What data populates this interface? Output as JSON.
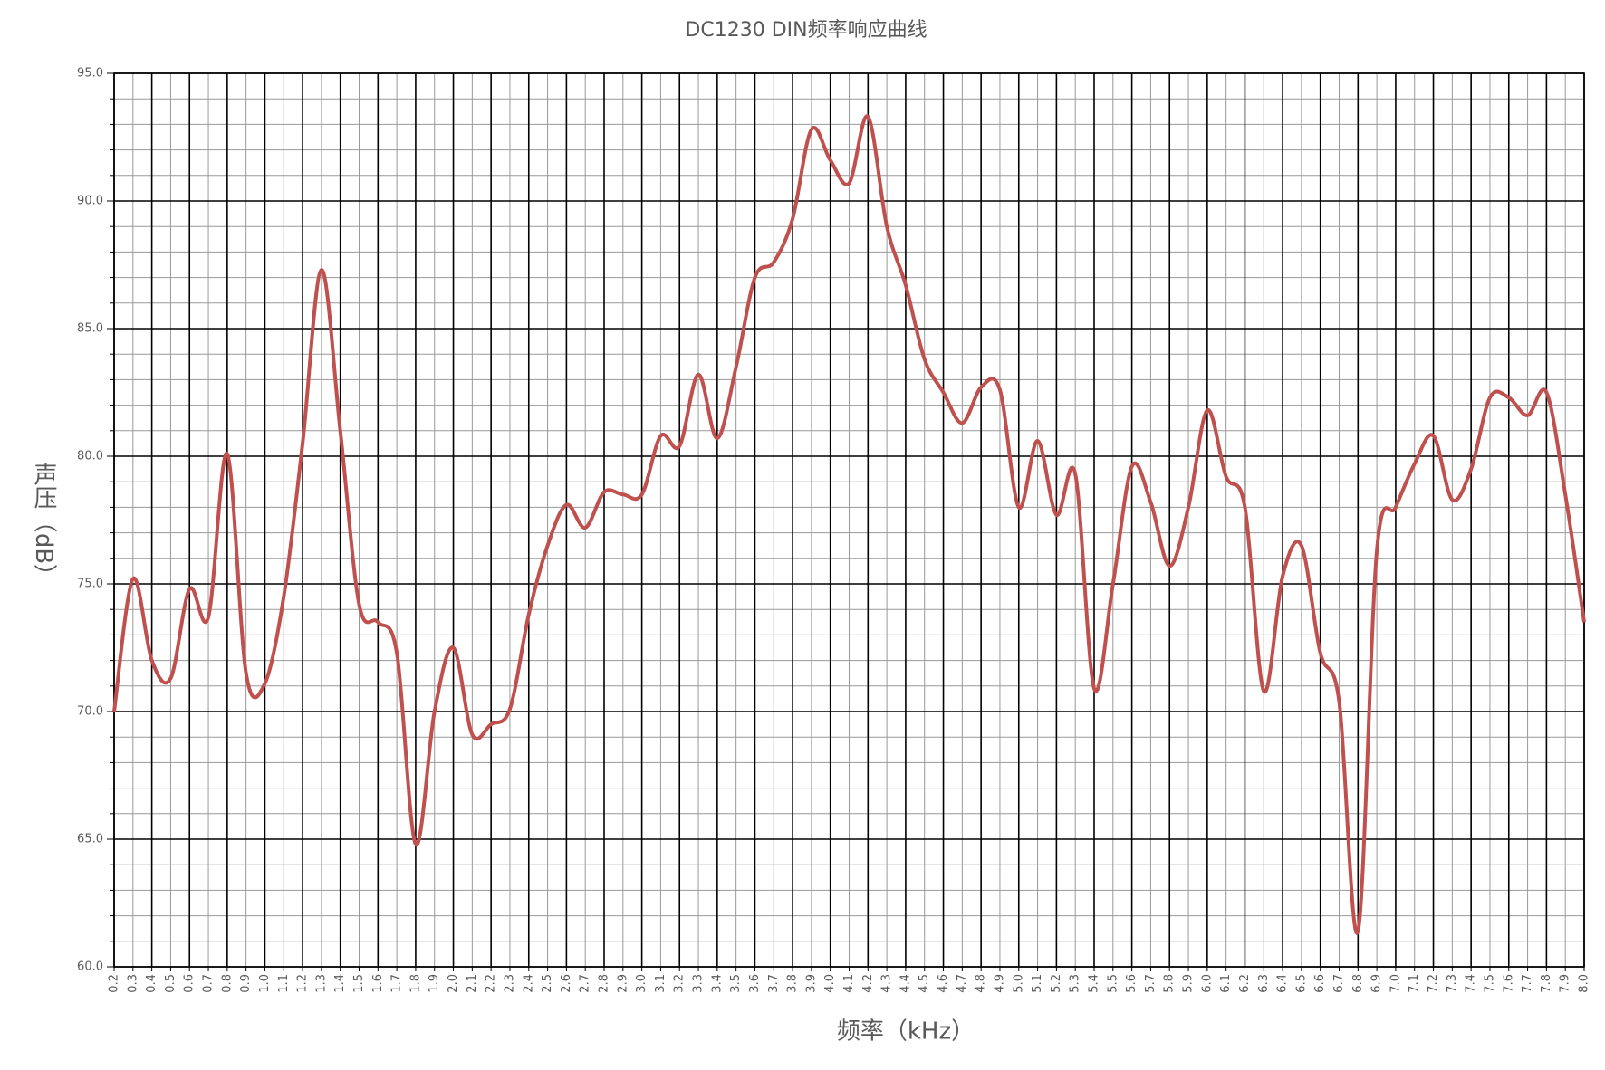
{
  "chart_data": {
    "type": "line",
    "title": "DC1230 DIN频率响应曲线",
    "x_label": "频率（kHz）",
    "y_label": "声压（dB）",
    "x": [
      0.2,
      0.3,
      0.4,
      0.5,
      0.6,
      0.7,
      0.8,
      0.9,
      1.0,
      1.1,
      1.2,
      1.3,
      1.4,
      1.5,
      1.6,
      1.7,
      1.8,
      1.9,
      2.0,
      2.1,
      2.2,
      2.3,
      2.4,
      2.5,
      2.6,
      2.7,
      2.8,
      2.9,
      3.0,
      3.1,
      3.2,
      3.3,
      3.4,
      3.5,
      3.6,
      3.7,
      3.8,
      3.9,
      4.0,
      4.1,
      4.2,
      4.3,
      4.4,
      4.5,
      4.6,
      4.7,
      4.8,
      4.9,
      5.0,
      5.1,
      5.2,
      5.3,
      5.4,
      5.5,
      5.6,
      5.7,
      5.8,
      5.9,
      6.0,
      6.1,
      6.2,
      6.3,
      6.4,
      6.5,
      6.6,
      6.7,
      6.8,
      6.9,
      7.0,
      7.1,
      7.2,
      7.3,
      7.4,
      7.5,
      7.6,
      7.7,
      7.8,
      7.9,
      8.0
    ],
    "series": [
      {
        "color": "#c0504d",
        "values": [
          70.0,
          75.2,
          72.0,
          71.3,
          74.8,
          73.7,
          80.1,
          71.5,
          71.1,
          74.5,
          80.5,
          87.3,
          81.0,
          74.2,
          73.5,
          72.3,
          64.8,
          70.0,
          72.5,
          69.1,
          69.5,
          70.1,
          73.8,
          76.5,
          78.1,
          77.2,
          78.6,
          78.5,
          78.5,
          80.8,
          80.4,
          83.2,
          80.7,
          83.5,
          87.0,
          87.6,
          89.3,
          92.8,
          91.6,
          90.7,
          93.3,
          89.0,
          86.7,
          83.8,
          82.5,
          81.3,
          82.7,
          82.6,
          78.0,
          80.6,
          77.7,
          79.3,
          70.9,
          75.0,
          79.6,
          78.2,
          75.7,
          78.0,
          81.8,
          79.2,
          78.0,
          70.8,
          75.3,
          76.5,
          72.3,
          70.4,
          61.4,
          76.3,
          78.0,
          79.7,
          80.8,
          78.3,
          79.5,
          82.3,
          82.3,
          81.6,
          82.5,
          78.5,
          73.5
        ]
      }
    ],
    "xlim": [
      0.2,
      8.0
    ],
    "xticks": [
      0.2,
      0.3,
      0.4,
      0.5,
      0.6,
      0.7,
      0.8,
      0.9,
      {
        "value": 1,
        "label": "1.0"
      },
      1.1,
      1.2,
      1.3,
      1.4,
      1.5,
      1.6,
      1.7,
      1.8,
      1.9,
      {
        "value": 2,
        "label": "2.0"
      },
      2.1,
      2.2,
      2.3,
      2.4,
      2.5,
      2.6,
      2.7,
      2.8,
      2.9,
      {
        "value": 3,
        "label": "3.0"
      },
      3.1,
      3.2,
      3.3,
      3.4,
      3.5,
      3.6,
      3.7,
      3.8,
      3.9,
      {
        "value": 4,
        "label": "4.0"
      },
      4.1,
      4.2,
      4.3,
      4.4,
      4.5,
      4.6,
      4.7,
      4.8,
      4.9,
      {
        "value": 5,
        "label": "5.0"
      },
      5.1,
      5.2,
      5.3,
      5.4,
      5.5,
      5.6,
      5.7,
      5.8,
      5.9,
      {
        "value": 6,
        "label": "6.0"
      },
      6.1,
      6.2,
      6.3,
      6.4,
      6.5,
      6.6,
      6.7,
      6.8,
      6.9,
      {
        "value": 7,
        "label": "7.0"
      },
      7.1,
      7.2,
      7.3,
      7.4,
      7.5,
      7.6,
      7.7,
      7.8,
      7.9,
      {
        "value": 8,
        "label": "8.0"
      }
    ],
    "ylim": [
      60,
      95
    ],
    "yticks": [
      {
        "value": 60,
        "label": "60.0"
      },
      {
        "value": 65,
        "label": "65.0"
      },
      {
        "value": 70,
        "label": "70.0"
      },
      {
        "value": 75,
        "label": "75.0"
      },
      {
        "value": 80,
        "label": "80.0"
      },
      {
        "value": 85,
        "label": "85.0"
      },
      {
        "value": 90,
        "label": "90.0"
      },
      {
        "value": 95,
        "label": "95.0"
      }
    ],
    "grid": true
  }
}
